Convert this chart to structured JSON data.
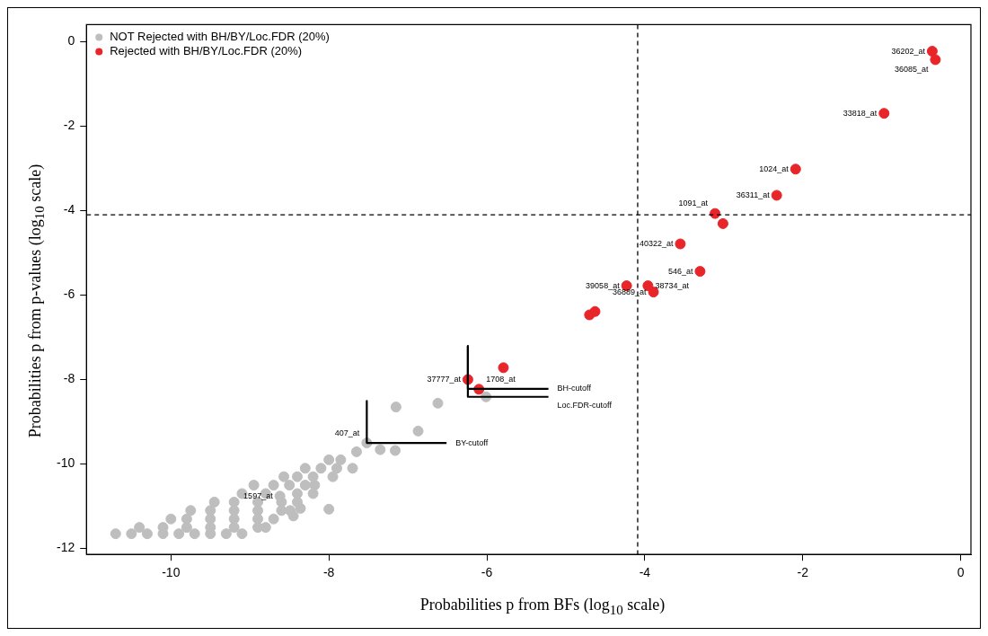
{
  "chart_data": {
    "type": "scatter",
    "xlabel": "Probabilities p from BFs (log$_{10}$ scale)",
    "ylabel": "Probabilities p from p-values (log$_{10}$ scale)",
    "xlim": [
      -11.07,
      0.13
    ],
    "ylim": [
      -12.14,
      0.4
    ],
    "xticks": [
      -10,
      -8,
      -6,
      -4,
      -2,
      0
    ],
    "yticks": [
      -12,
      -10,
      -8,
      -6,
      -4,
      -2,
      0
    ],
    "grid": false,
    "legend": "top left",
    "marker": "circle",
    "series": [
      {
        "name": "NOT Rejected with BH/BY/Loc.FDR (20%)",
        "color": "#bebebe",
        "x": [
          -10.7,
          -10.5,
          -10.3,
          -10.1,
          -9.9,
          -9.7,
          -9.5,
          -9.3,
          -9.1,
          -10.4,
          -10.1,
          -9.8,
          -9.5,
          -9.2,
          -8.9,
          -8.8,
          -10.0,
          -9.8,
          -9.5,
          -9.2,
          -8.9,
          -8.7,
          -9.75,
          -9.5,
          -9.2,
          -8.9,
          -8.6,
          -8.49,
          -9.45,
          -9.2,
          -8.9,
          -8.6,
          -8.4,
          -9.1,
          -8.8,
          -8.62,
          -8.4,
          -8.2,
          -8.95,
          -8.7,
          -8.5,
          -8.3,
          -8.18,
          -8.57,
          -8.4,
          -8.2,
          -7.95,
          -8.3,
          -8.1,
          -7.9,
          -7.7,
          -8.0,
          -7.85,
          -8.45,
          -8.36,
          -8.0,
          -7.65,
          -7.35,
          -7.16,
          -7.52,
          -6.87,
          -7.15,
          -6.62,
          -6.01
        ],
        "values": [
          -11.65,
          -11.65,
          -11.65,
          -11.65,
          -11.65,
          -11.65,
          -11.65,
          -11.65,
          -11.65,
          -11.5,
          -11.5,
          -11.5,
          -11.5,
          -11.5,
          -11.5,
          -11.5,
          -11.3,
          -11.3,
          -11.3,
          -11.3,
          -11.3,
          -11.3,
          -11.1,
          -11.1,
          -11.1,
          -11.1,
          -11.1,
          -11.1,
          -10.9,
          -10.9,
          -10.9,
          -10.9,
          -10.9,
          -10.7,
          -10.7,
          -10.76,
          -10.7,
          -10.7,
          -10.5,
          -10.5,
          -10.5,
          -10.5,
          -10.5,
          -10.3,
          -10.3,
          -10.3,
          -10.3,
          -10.1,
          -10.1,
          -10.1,
          -10.1,
          -9.9,
          -9.9,
          -11.23,
          -11.05,
          -11.07,
          -9.71,
          -9.66,
          -9.68,
          -9.5,
          -9.22,
          -8.65,
          -8.56,
          -8.41
        ]
      },
      {
        "name": "Rejected with BH/BY/Loc.FDR (20%)",
        "color": "#e8262a",
        "x": [
          -0.36,
          -0.32,
          -0.97,
          -2.09,
          -2.33,
          -3.11,
          -3.01,
          -3.55,
          -3.3,
          -4.23,
          -3.96,
          -3.89,
          -4.7,
          -4.63,
          -5.79,
          -6.24,
          -6.1
        ],
        "values": [
          -0.23,
          -0.43,
          -1.7,
          -3.02,
          -3.64,
          -4.07,
          -4.31,
          -4.79,
          -5.44,
          -5.78,
          -5.78,
          -5.93,
          -6.47,
          -6.39,
          -7.72,
          -8.0,
          -8.23
        ]
      },
      {
        "type": "line",
        "marker": "none",
        "color": "#000000",
        "x": [
          -7.52,
          -7.52,
          -6.51
        ],
        "values": [
          -8.51,
          -9.5,
          -9.5
        ]
      },
      {
        "type": "line",
        "marker": "none",
        "color": "#000000",
        "x": [
          -6.24,
          -6.24,
          -5.22
        ],
        "values": [
          -7.21,
          -8.22,
          -8.22
        ]
      },
      {
        "type": "line",
        "marker": "none",
        "color": "#000000",
        "x": [
          -6.24,
          -6.24,
          -5.22
        ],
        "values": [
          -7.21,
          -8.41,
          -8.41
        ]
      }
    ],
    "ref_lines": [
      {
        "axis": "x",
        "value": -4.09,
        "line_style": "dashed",
        "color": "#000000"
      },
      {
        "axis": "y",
        "value": -4.1,
        "line_style": "dashed",
        "color": "#000000"
      }
    ],
    "annotations": [
      {
        "text": "36202_at",
        "x": -0.36,
        "y": -0.23
      },
      {
        "text": "36085_at",
        "x": -0.32,
        "y": -0.43
      },
      {
        "text": "33818_at",
        "x": -0.97,
        "y": -1.7
      },
      {
        "text": "1024_at",
        "x": -2.09,
        "y": -3.02
      },
      {
        "text": "36311_at",
        "x": -2.33,
        "y": -3.64
      },
      {
        "text": "1091_at",
        "x": -3.11,
        "y": -4.07
      },
      {
        "text": "40322_at",
        "x": -3.55,
        "y": -4.79
      },
      {
        "text": "546_at",
        "x": -3.3,
        "y": -5.44
      },
      {
        "text": "39058_at",
        "x": -4.23,
        "y": -5.78
      },
      {
        "text": "38734_at",
        "x": -3.96,
        "y": -5.78
      },
      {
        "text": "36889_at",
        "x": -3.89,
        "y": -5.93
      },
      {
        "text": "37777_at",
        "x": -6.24,
        "y": -8.0
      },
      {
        "text": "1708_at",
        "x": -6.1,
        "y": -8.23
      },
      {
        "text": "407_at",
        "x": -7.52,
        "y": -9.5
      },
      {
        "text": "1597_at",
        "x": -8.62,
        "y": -10.76
      },
      {
        "text": "BY-cutoff",
        "x": -6.51,
        "y": -9.5
      },
      {
        "text": "BH-cutoff",
        "x": -5.22,
        "y": -8.22
      },
      {
        "text": "Loc.FDR-cutoff",
        "x": -5.22,
        "y": -8.41
      }
    ]
  }
}
